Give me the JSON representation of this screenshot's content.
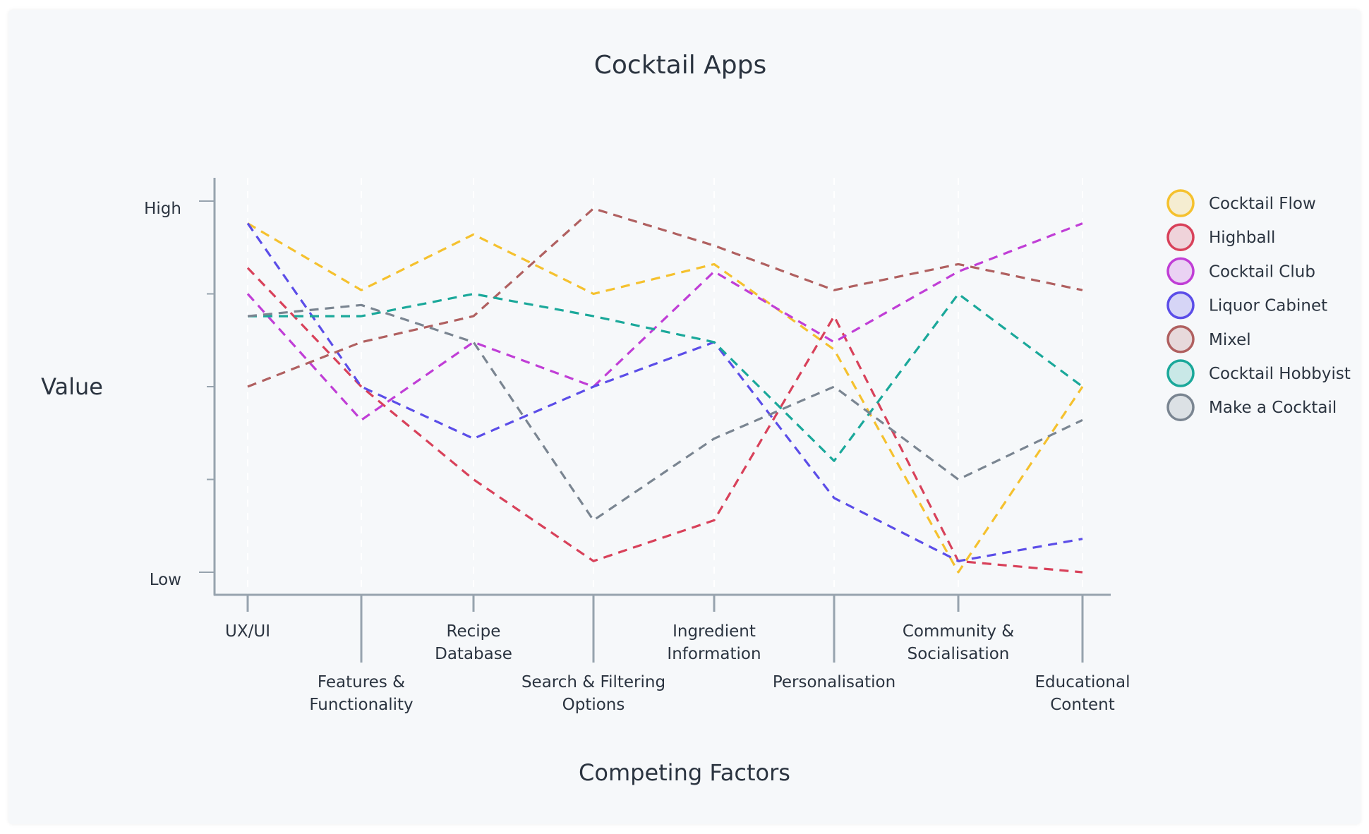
{
  "chart_data": {
    "type": "line",
    "title": "Cocktail Apps",
    "xlabel": "Competing Factors",
    "ylabel": "Value",
    "y_tick_labels": {
      "high": "High",
      "low": "Low"
    },
    "ylim": [
      0,
      10
    ],
    "line_style": "dashed",
    "grid": "vertical dashed",
    "legend_position": "right",
    "categories": [
      [
        "UX/UI"
      ],
      [
        "Features &",
        "Functionality"
      ],
      [
        "Recipe",
        "Database"
      ],
      [
        "Search & Filtering",
        "Options"
      ],
      [
        "Ingredient",
        "Information"
      ],
      [
        "Personalisation"
      ],
      [
        "Community &",
        "Socialisation"
      ],
      [
        "Educational",
        "Content"
      ]
    ],
    "series": [
      {
        "name": "Cocktail Flow",
        "color": "#f5c12e",
        "values": [
          9.4,
          7.6,
          9.1,
          7.5,
          8.3,
          6.0,
          0.0,
          5.0
        ]
      },
      {
        "name": "Highball",
        "color": "#d8415a",
        "values": [
          8.2,
          5.0,
          2.5,
          0.3,
          1.4,
          6.9,
          0.3,
          0.0
        ]
      },
      {
        "name": "Cocktail Club",
        "color": "#c03ed6",
        "values": [
          7.5,
          4.1,
          6.2,
          5.0,
          8.1,
          6.2,
          8.1,
          9.4
        ]
      },
      {
        "name": "Liquor Cabinet",
        "color": "#5b4de8",
        "values": [
          9.4,
          5.0,
          3.6,
          5.0,
          6.2,
          2.0,
          0.3,
          0.9
        ]
      },
      {
        "name": "Mixel",
        "color": "#b06060",
        "values": [
          5.0,
          6.2,
          6.9,
          9.8,
          8.8,
          7.6,
          8.3,
          7.6
        ]
      },
      {
        "name": "Cocktail Hobbyist",
        "color": "#1aa89a",
        "values": [
          6.9,
          6.9,
          7.5,
          6.9,
          6.2,
          3.0,
          7.5,
          5.0
        ]
      },
      {
        "name": "Make a Cocktail",
        "color": "#7a8591",
        "values": [
          6.9,
          7.2,
          6.2,
          1.4,
          3.6,
          5.0,
          2.5,
          4.1
        ]
      }
    ]
  }
}
